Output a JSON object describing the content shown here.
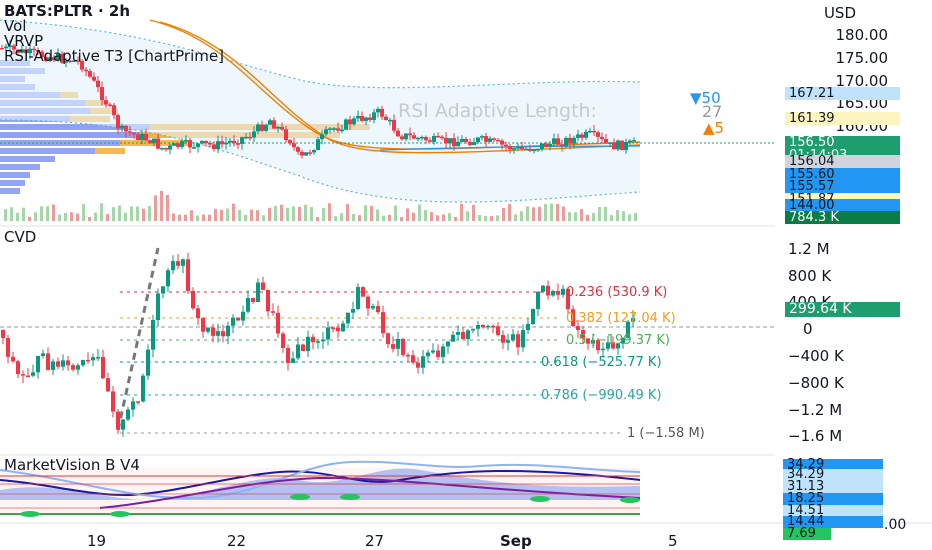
{
  "main": {
    "symbol": "BATS:PLTR · 2h",
    "indicators": [
      "Vol",
      "VRVP",
      "RSI-Adaptive T3 [ChartPrime]"
    ],
    "currency": "USD",
    "price_axis": [
      "180.00",
      "175.00",
      "170.00",
      "165.00",
      "160.00"
    ],
    "watermark": "RSI Adaptive Length:",
    "rsi_length": "27",
    "up_marker": "▼50",
    "down_marker": "▲5",
    "badges": [
      {
        "text": "167.21",
        "bg": "#bfe3fb",
        "fg": "#131722"
      },
      {
        "text": "161.39",
        "bg": "#fdf5c0",
        "fg": "#131722"
      },
      {
        "text": "156.50",
        "bg": "#1e9e6e",
        "fg": "#ffffff"
      },
      {
        "text": "01:14:03",
        "bg": "#1e9e6e",
        "fg": "#ffffff"
      },
      {
        "text": "156.04",
        "bg": "#d1d4dc",
        "fg": "#131722"
      },
      {
        "text": "155.60",
        "bg": "#2196f3",
        "fg": "#131722"
      },
      {
        "text": "155.57",
        "bg": "#2196f3",
        "fg": "#131722"
      },
      {
        "text": "151.87",
        "bg": "#fdf5c0",
        "fg": "#131722"
      },
      {
        "text": "144.00",
        "bg": "#2196f3",
        "fg": "#131722"
      },
      {
        "text": "784.3 K",
        "bg": "#0a7c45",
        "fg": "#ffffff"
      }
    ]
  },
  "cvd": {
    "title": "CVD",
    "axis": [
      "1.2 M",
      "800 K",
      "400 K",
      "0",
      "−400 K",
      "−800 K",
      "−1.2 M",
      "−1.6 M"
    ],
    "value_badge": "299.64 K",
    "fib_levels": [
      {
        "text": "0.236 (530.9 K)",
        "color": "#e0323c"
      },
      {
        "text": "0.382 (127.04 K)",
        "color": "#f59c1a"
      },
      {
        "text": "0.5 (−199.37 K)",
        "color": "#4caf50"
      },
      {
        "text": "0.618 (−525.77 K)",
        "color": "#089981"
      },
      {
        "text": "0.786 (−990.49 K)",
        "color": "#26a69a"
      },
      {
        "text": "1 (−1.58 M)",
        "color": "#555555"
      }
    ]
  },
  "marketvision": {
    "title": "MarketVision B V4",
    "badges": [
      {
        "text": "34.29",
        "bg": "#2196f3",
        "fg": "#131722"
      },
      {
        "text": "34.29",
        "bg": "#bfe3fb",
        "fg": "#131722"
      },
      {
        "text": "31.13",
        "bg": "#bfe3fb",
        "fg": "#131722"
      },
      {
        "text": "18.25",
        "bg": "#2196f3",
        "fg": "#131722"
      },
      {
        "text": "14.51",
        "bg": "#bfe3fb",
        "fg": "#131722"
      },
      {
        "text": "14.44",
        "bg": "#2196f3",
        "fg": "#131722"
      },
      {
        "text": "7.69",
        "bg": "#22c55e",
        "fg": "#131722"
      }
    ],
    "axis_tail": ".00"
  },
  "time_axis": [
    "19",
    "22",
    "27",
    "Sep",
    "5"
  ],
  "colors": {
    "up": "#089981",
    "down": "#f23645",
    "accent": "#2196f3"
  }
}
